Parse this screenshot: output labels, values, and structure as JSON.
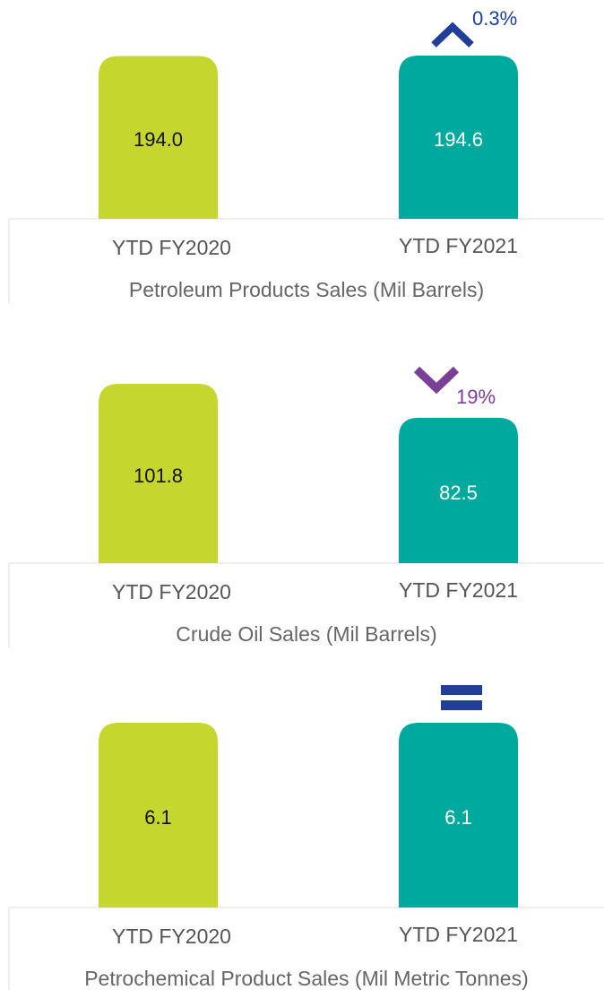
{
  "chart_data": [
    {
      "type": "bar",
      "title": "Petroleum Products Sales (Mil Barrels)",
      "categories": [
        "YTD FY2020",
        "YTD FY2021"
      ],
      "values": [
        194.0,
        194.6
      ],
      "value_labels": [
        "194.0",
        "194.6"
      ],
      "colors": [
        "#c5d62e",
        "#00a99d"
      ],
      "change": {
        "direction": "up",
        "label": "0.3%",
        "color": "#1f3f99"
      }
    },
    {
      "type": "bar",
      "title": "Crude Oil Sales (Mil Barrels)",
      "categories": [
        "YTD FY2020",
        "YTD FY2021"
      ],
      "values": [
        101.8,
        82.5
      ],
      "colors": [
        "#c5d62e",
        "#00a99d"
      ],
      "change": {
        "direction": "down",
        "label": "19%",
        "color": "#7b3f98"
      }
    },
    {
      "type": "bar",
      "title": "Petrochemical Product Sales (Mil Metric Tonnes)",
      "categories": [
        "YTD FY2020",
        "YTD FY2021"
      ],
      "values": [
        6.1,
        6.1
      ],
      "colors": [
        "#c5d62e",
        "#00a99d"
      ],
      "change": {
        "direction": "equal",
        "color": "#1f3f99"
      }
    }
  ]
}
